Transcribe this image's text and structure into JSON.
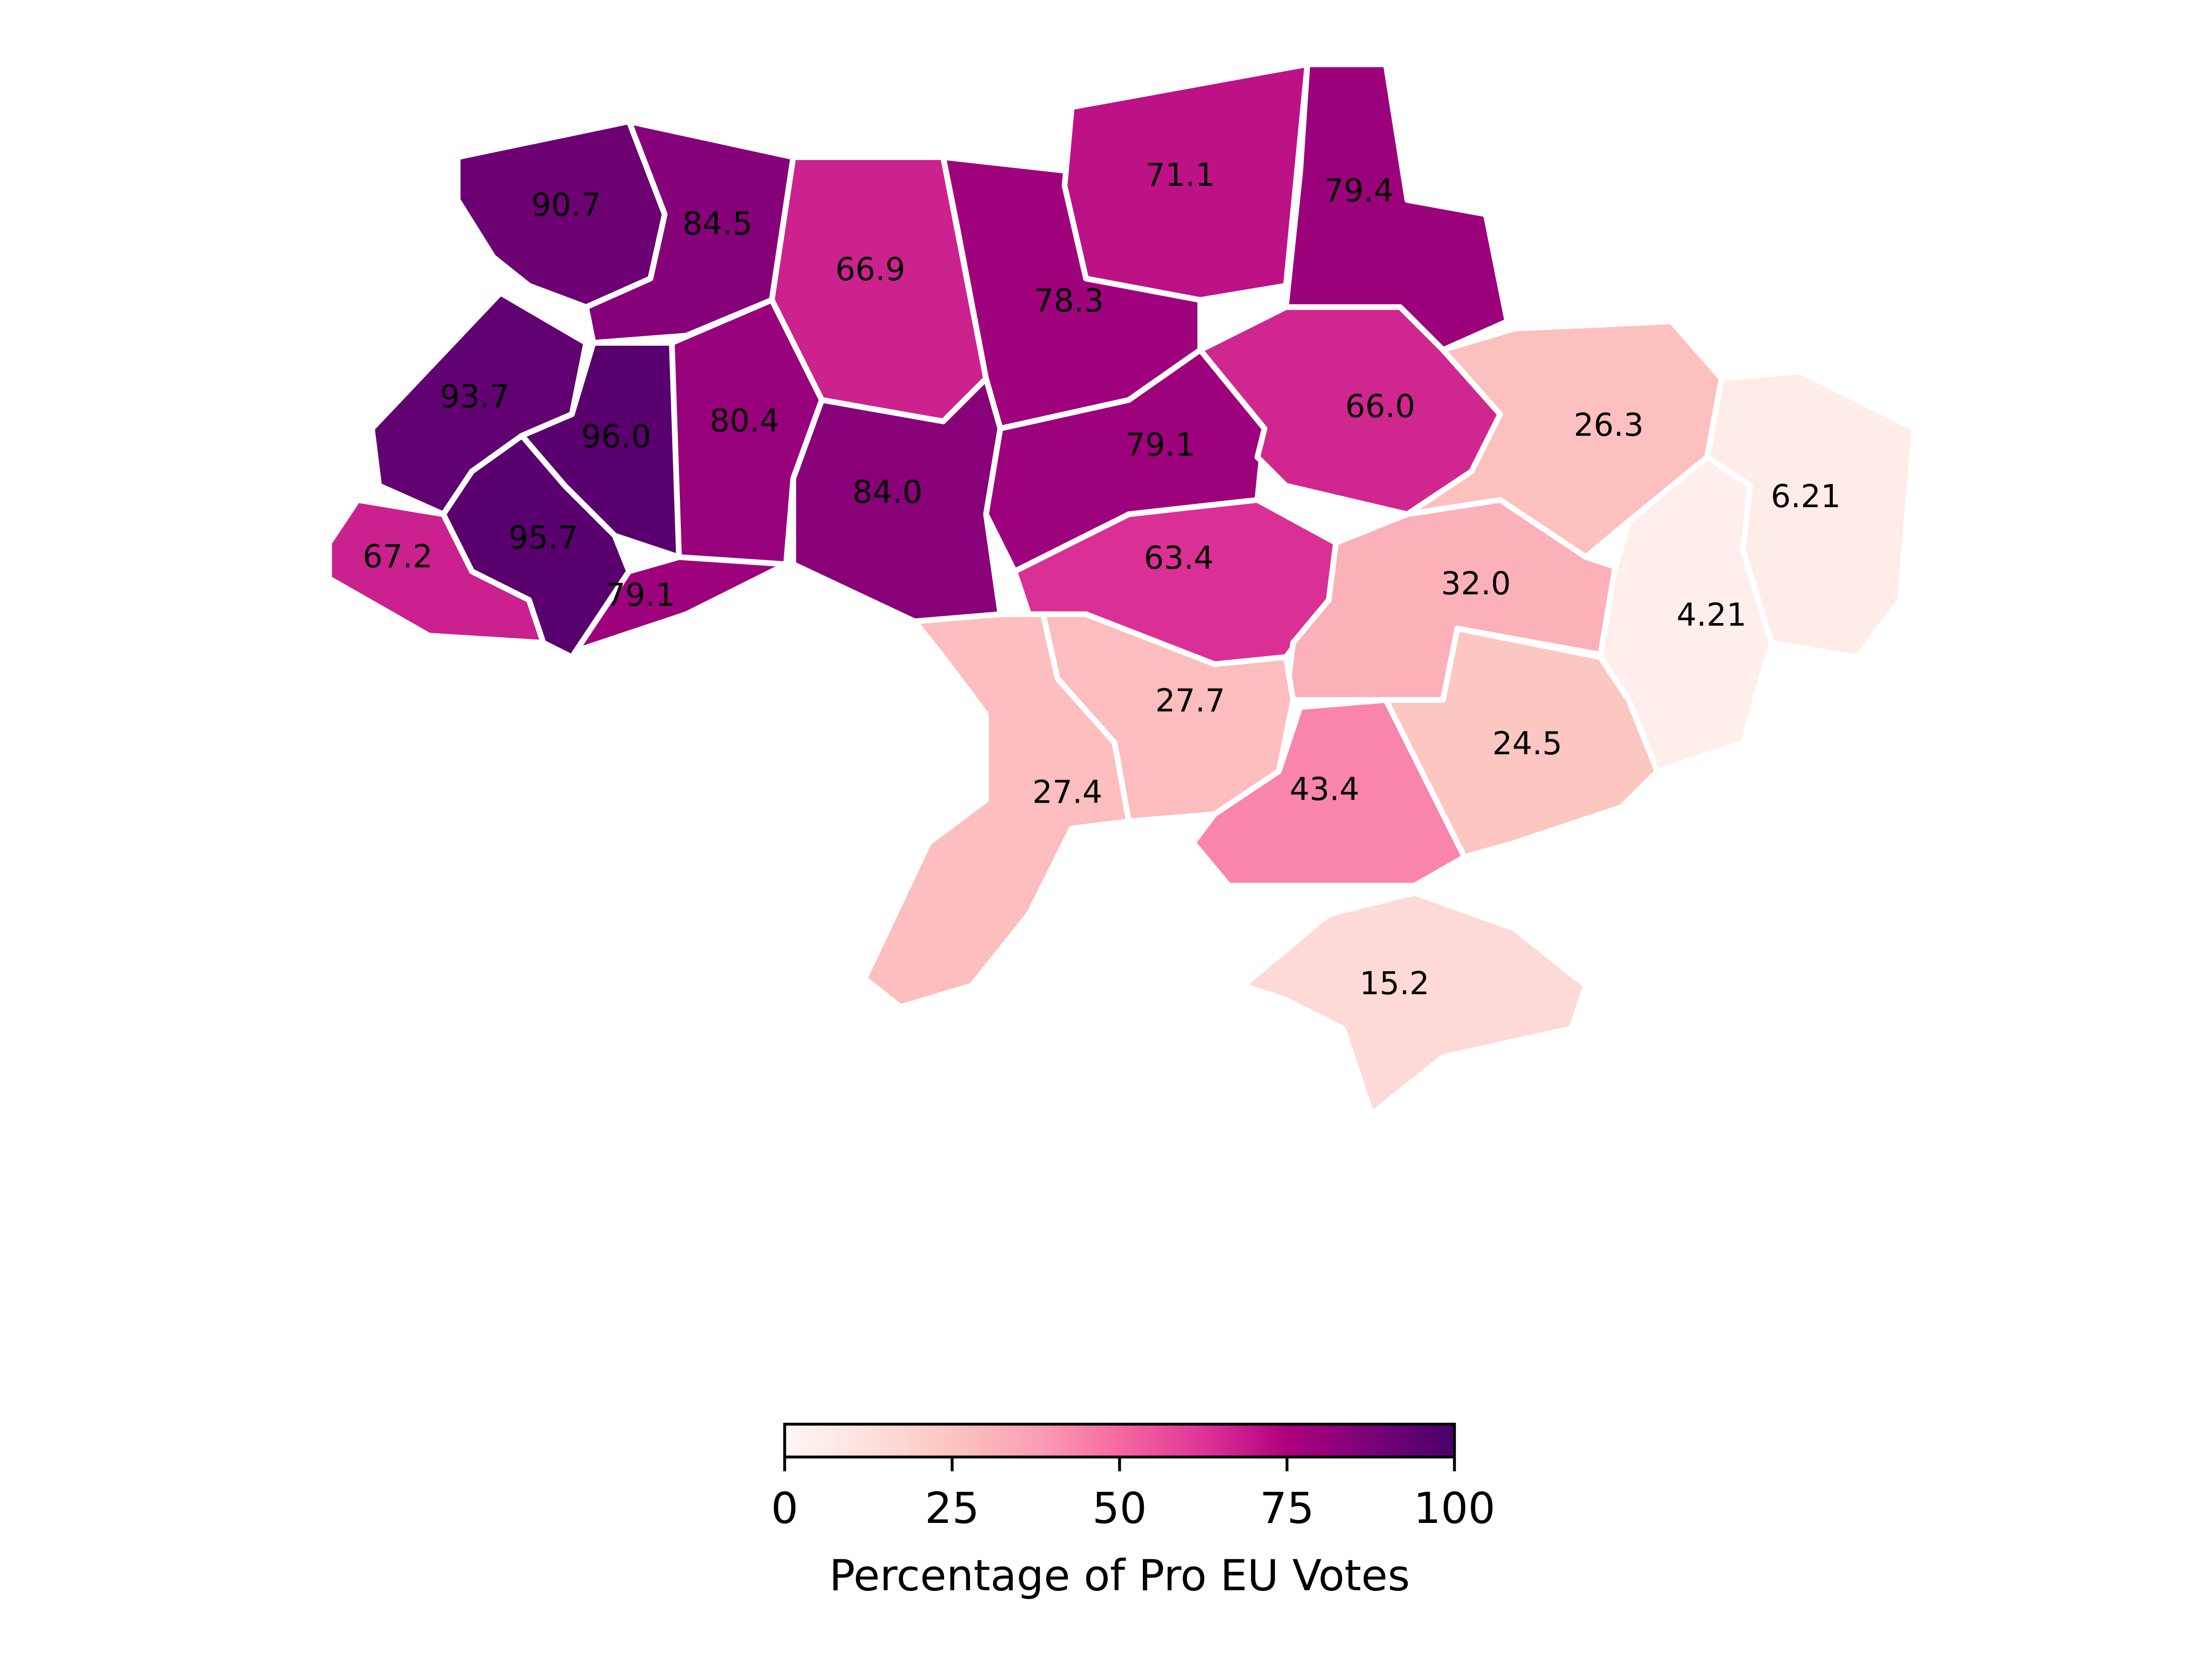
{
  "chart_data": {
    "type": "choropleth",
    "values": [
      90.7,
      84.5,
      66.9,
      78.3,
      71.1,
      79.4,
      93.7,
      96.0,
      80.4,
      84.0,
      79.1,
      66.0,
      26.3,
      6.21,
      67.2,
      95.7,
      79.1,
      63.4,
      32.0,
      4.21,
      27.7,
      27.4,
      43.4,
      24.5,
      15.2
    ],
    "value_labels": [
      "90.7",
      "84.5",
      "66.9",
      "78.3",
      "71.1",
      "79.4",
      "93.7",
      "96.0",
      "80.4",
      "84.0",
      "79.1",
      "66.0",
      "26.3",
      "6.21",
      "67.2",
      "95.7",
      "79.1",
      "63.4",
      "32.0",
      "4.21",
      "27.7",
      "27.4",
      "43.4",
      "24.5",
      "15.2"
    ],
    "colormap": "RdPu",
    "clim": [
      0,
      100
    ],
    "colorbar": {
      "label": "Percentage of Pro EU Votes",
      "ticks": [
        0,
        25,
        50,
        75,
        100
      ]
    }
  }
}
